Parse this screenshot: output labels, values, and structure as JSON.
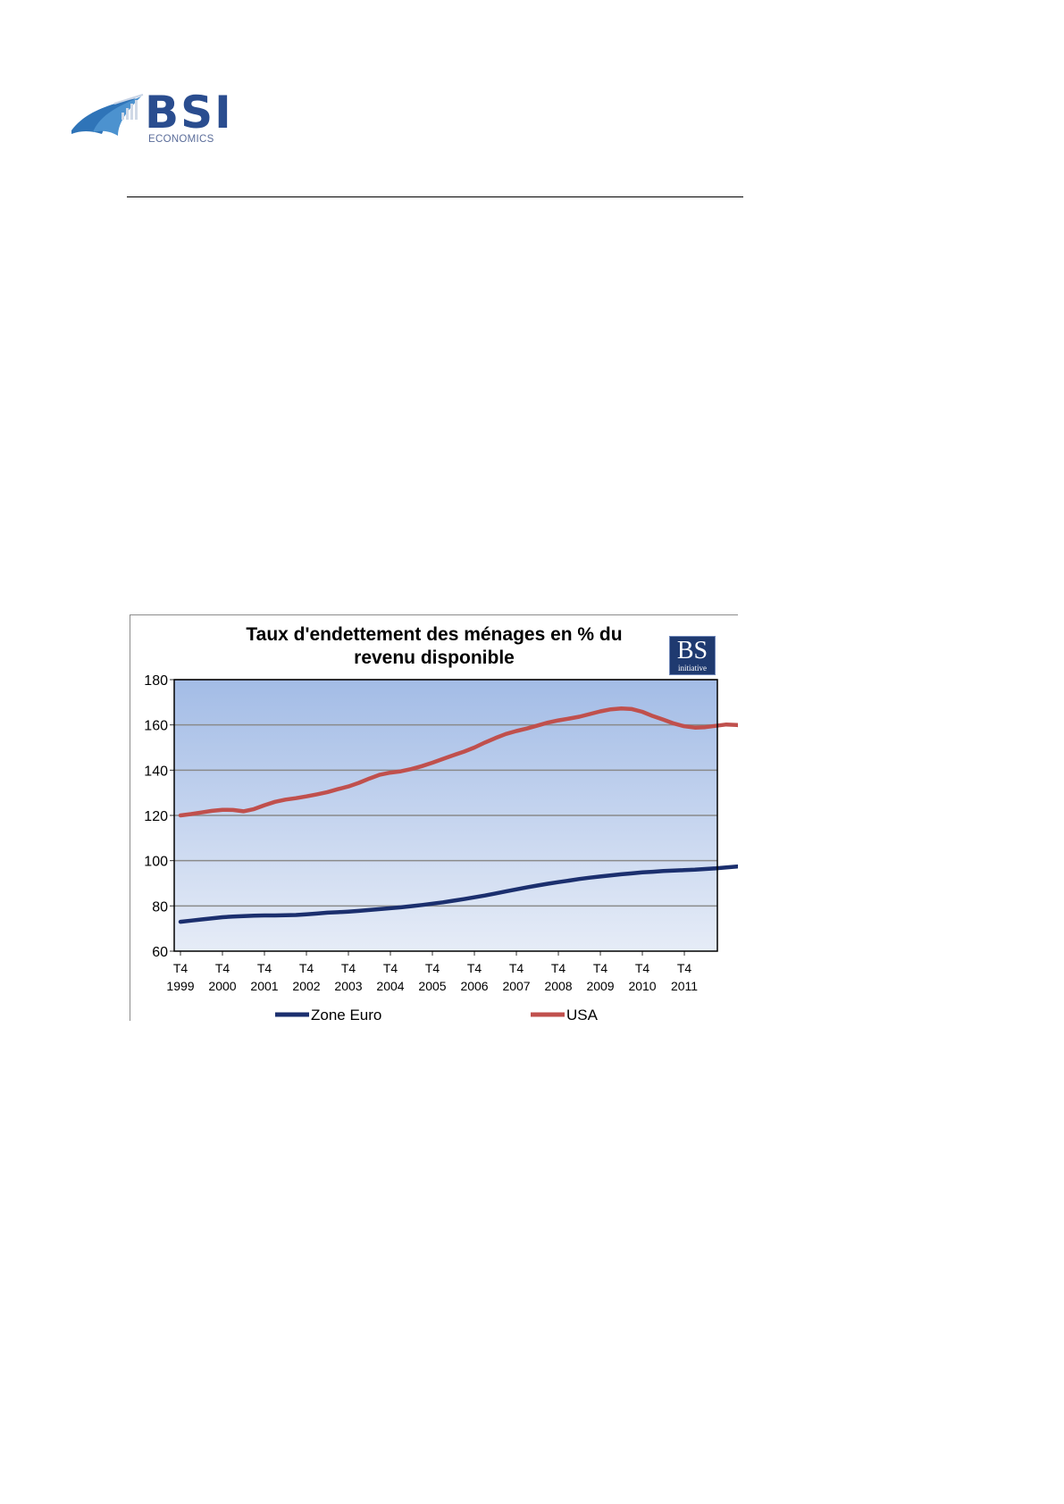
{
  "logo": {
    "main": "BSI",
    "sub": "ECONOMICS"
  },
  "badge": {
    "main": "BS",
    "sub": "initiative"
  },
  "colors": {
    "zone_euro": "#1b2f6e",
    "usa": "#c0504d",
    "plot_top": "#a3bce6",
    "plot_bottom": "#e6ecf7",
    "grid": "#8a8a8a",
    "logo_blue": "#2a4d8f"
  },
  "chart_data": {
    "type": "line",
    "title_lines": [
      "Taux d'endettement des ménages en % du",
      "revenu disponible"
    ],
    "ylim": [
      60,
      180
    ],
    "yticks": [
      60,
      80,
      100,
      120,
      140,
      160,
      180
    ],
    "grid": true,
    "legend_position": "bottom",
    "x_start": "T4 1999",
    "x_frequency": "quarterly",
    "x_tick_labels": [
      [
        "T4",
        "1999"
      ],
      [
        "T4",
        "2000"
      ],
      [
        "T4",
        "2001"
      ],
      [
        "T4",
        "2002"
      ],
      [
        "T4",
        "2003"
      ],
      [
        "T4",
        "2004"
      ],
      [
        "T4",
        "2005"
      ],
      [
        "T4",
        "2006"
      ],
      [
        "T4",
        "2007"
      ],
      [
        "T4",
        "2008"
      ],
      [
        "T4",
        "2009"
      ],
      [
        "T4",
        "2010"
      ],
      [
        "T4",
        "2011"
      ]
    ],
    "series": [
      {
        "name": "Zone Euro",
        "color": "#1b2f6e",
        "values": [
          73,
          73.5,
          74,
          74.5,
          75,
          75.3,
          75.5,
          75.7,
          75.8,
          75.8,
          75.9,
          76,
          76.3,
          76.6,
          77,
          77.2,
          77.5,
          77.8,
          78.2,
          78.6,
          79,
          79.4,
          79.9,
          80.4,
          81,
          81.6,
          82.3,
          83,
          83.8,
          84.6,
          85.5,
          86.4,
          87.3,
          88.2,
          89,
          89.8,
          90.5,
          91.2,
          91.9,
          92.5,
          93,
          93.5,
          94,
          94.4,
          94.8,
          95.1,
          95.4,
          95.6,
          95.8,
          96,
          96.3,
          96.6,
          97,
          97.4,
          97.9,
          98.4,
          98.9,
          99.4,
          99.8,
          100.1,
          100.3,
          100.4,
          100.4,
          100.2,
          100.1,
          100,
          99.8,
          99.7,
          99.6,
          99.5,
          99.4
        ]
      },
      {
        "name": "USA",
        "color": "#c0504d",
        "values": [
          120,
          120.6,
          121.3,
          122,
          122.5,
          122.4,
          121.8,
          122.8,
          124.5,
          126,
          127,
          127.6,
          128.4,
          129.3,
          130.3,
          131.6,
          132.8,
          134.4,
          136.3,
          138,
          138.9,
          139.5,
          140.5,
          141.8,
          143.3,
          145,
          146.6,
          148.2,
          150,
          152.2,
          154.2,
          156,
          157.3,
          158.4,
          159.7,
          161,
          162,
          162.8,
          163.6,
          164.8,
          166,
          166.9,
          167.3,
          167,
          165.8,
          163.9,
          162.3,
          160.6,
          159.4,
          158.8,
          159,
          159.6,
          160.2,
          160,
          159,
          157.6,
          156.2,
          154.8,
          153.2,
          151.6,
          150,
          148.4,
          146.8,
          145.4,
          144.4,
          143.7,
          143,
          142.1,
          141.2,
          140.6,
          140.2
        ]
      }
    ]
  }
}
